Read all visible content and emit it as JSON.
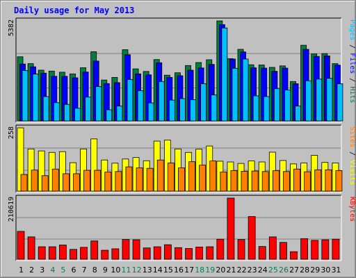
{
  "chart_data": {
    "title": "Daily usage for May 2013",
    "type": "bar",
    "days": [
      "1",
      "2",
      "3",
      "4",
      "5",
      "6",
      "7",
      "8",
      "9",
      "10",
      "11",
      "12",
      "13",
      "14",
      "15",
      "16",
      "17",
      "18",
      "19",
      "20",
      "21",
      "22",
      "23",
      "24",
      "25",
      "26",
      "27",
      "28",
      "29",
      "30",
      "31"
    ],
    "weekend_days": [
      "4",
      "5",
      "11",
      "12",
      "18",
      "19",
      "25",
      "26"
    ],
    "panels": [
      {
        "name": "hits-files-pages",
        "max_label": "5382",
        "ymax": 5382,
        "right_label_parts": [
          {
            "text": "Pages",
            "color": "#00c0ff"
          },
          {
            "text": " / ",
            "color": "#000000"
          },
          {
            "text": "Files",
            "color": "#0000ff"
          },
          {
            "text": " / ",
            "color": "#000000"
          },
          {
            "text": "Hits",
            "color": "#008040"
          }
        ],
        "series": [
          {
            "name": "Hits",
            "color": "#008040",
            "values": [
              3450,
              3080,
              2730,
              2680,
              2620,
              2530,
              2860,
              3720,
              2200,
              2340,
              3830,
              2800,
              2660,
              3300,
              2460,
              2590,
              2980,
              3140,
              3290,
              5380,
              3350,
              3850,
              3020,
              3010,
              2880,
              2960,
              2120,
              4070,
              3600,
              3620,
              3080
            ]
          },
          {
            "name": "Files",
            "color": "#0000ff",
            "values": [
              3060,
              2910,
              2570,
              2400,
              2400,
              2320,
              2630,
              3220,
              2010,
              2060,
              3560,
              2530,
              2480,
              3130,
              2340,
              2430,
              2730,
              2850,
              3040,
              5180,
              3330,
              3710,
              2860,
              2840,
              2670,
              2840,
              2000,
              3850,
              3470,
              3500,
              3000
            ]
          },
          {
            "name": "Pages",
            "color": "#00c0ff",
            "values": [
              2710,
              2520,
              1310,
              980,
              890,
              680,
              1280,
              1850,
              600,
              800,
              2230,
              1630,
              970,
              2120,
              1120,
              1200,
              1140,
              2000,
              1400,
              5000,
              2830,
              3330,
              1350,
              1310,
              1730,
              1660,
              800,
              2160,
              2250,
              2290,
              2000
            ]
          }
        ]
      },
      {
        "name": "visits-sites",
        "max_label": "258",
        "ymax": 258,
        "right_label_parts": [
          {
            "text": "Sites",
            "color": "#ff8000"
          },
          {
            "text": " / ",
            "color": "#000000"
          },
          {
            "text": "Visits",
            "color": "#ffff00"
          }
        ],
        "series": [
          {
            "name": "Visits",
            "color": "#ffff00",
            "values": [
              258,
              172,
              164,
              158,
              161,
              116,
              172,
              213,
              127,
              114,
              131,
              137,
              124,
              204,
              208,
              172,
              158,
              171,
              184,
              122,
              119,
              113,
              123,
              119,
              159,
              125,
              111,
              115,
              146,
              117,
              115
            ]
          },
          {
            "name": "Sites",
            "color": "#ff8000",
            "values": [
              68,
              86,
              63,
              90,
              71,
              71,
              85,
              85,
              78,
              80,
              99,
              95,
              93,
              127,
              115,
              95,
              120,
              106,
              123,
              78,
              84,
              81,
              82,
              80,
              84,
              80,
              90,
              79,
              87,
              87,
              84
            ]
          }
        ]
      },
      {
        "name": "kbytes",
        "max_label": "210619",
        "ymax": 210619,
        "right_label_parts": [
          {
            "text": "KBytes",
            "color": "#ff0000"
          }
        ],
        "series": [
          {
            "name": "KBytes",
            "color": "#ff0000",
            "values": [
              96000,
              77000,
              43000,
              43000,
              49000,
              34000,
              41000,
              63000,
              31000,
              36000,
              68000,
              67000,
              39000,
              43000,
              50000,
              40000,
              37000,
              42000,
              43000,
              69000,
              210619,
              68000,
              147000,
              44000,
              77000,
              58000,
              26000,
              71000,
              65000,
              67000,
              69000
            ]
          }
        ]
      }
    ]
  }
}
